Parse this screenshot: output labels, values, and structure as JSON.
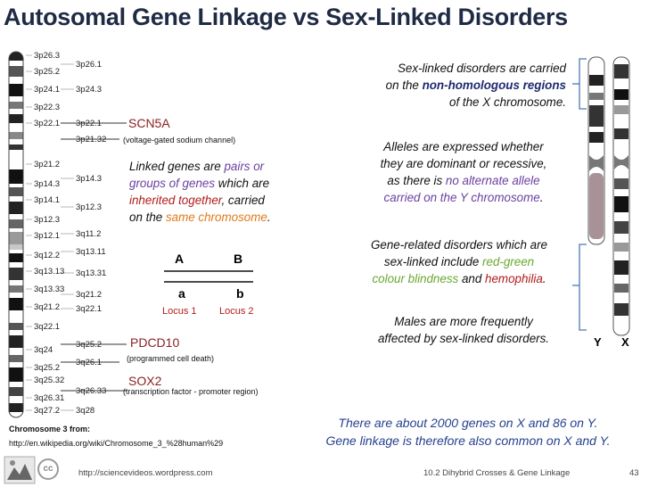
{
  "title": "Autosomal Gene Linkage  vs   Sex-Linked Disorders",
  "chromosome_bands_left": [
    "3p26.3",
    "3p25.2",
    "3p24.1",
    "3p22.3",
    "3p22.1",
    "3p21.2",
    "3p14.3",
    "3p14.1",
    "3p12.3",
    "3p12.1",
    "3q12.2",
    "3q13.13",
    "3q13.33",
    "3q21.2",
    "3q22.1",
    "3q24",
    "3q25.2",
    "3q25.32",
    "3q26.31",
    "3q27.2"
  ],
  "chromosome_bands_right": [
    "3p26.1",
    "3p24.3",
    "3p22.1",
    "3p21.32",
    "3p14.3",
    "3p12.3",
    "3q11.2",
    "3q13.11",
    "3q13.31",
    "3q21.2",
    "3q22.1",
    "3q25.2",
    "3q26.1",
    "3q26.33",
    "3q28"
  ],
  "genes": {
    "scn5a": {
      "name": "SCN5A",
      "desc": "(voltage-gated sodium channel)"
    },
    "pdcd10": {
      "name": "PDCD10",
      "desc": "(programmed cell death)"
    },
    "sox2": {
      "name": "SOX2",
      "desc": "(transcription factor - promoter region)"
    }
  },
  "linked": {
    "l1": "Linked genes are ",
    "l1b": "pairs or",
    "l2": "groups of genes",
    "l2b": " which are",
    "l3": "inherited together",
    "l3b": ", carried",
    "l4": "on the ",
    "l4b": "same chromosome",
    "l4c": "."
  },
  "diagram": {
    "allele_A": "A",
    "allele_B": "B",
    "allele_a": "a",
    "allele_b": "b",
    "locus1": "Locus 1",
    "locus2": "Locus 2"
  },
  "sex_linked": {
    "p1_l1": "Sex-linked disorders are carried",
    "p1_l2a": "on the ",
    "p1_l2b": "non-homologous regions",
    "p1_l3": "of the X chromosome.",
    "p2_l1": "Alleles are expressed whether",
    "p2_l2": "they are dominant or recessive,",
    "p2_l3a": "as there is ",
    "p2_l3b": "no alternate allele",
    "p2_l4a": "carried on the Y chromosome",
    "p2_l4b": ".",
    "p3_l1": "Gene-related disorders which are",
    "p3_l2a": "sex-linked include ",
    "p3_l2b": "red-green",
    "p3_l3a": "colour blindness",
    "p3_l3b": " and ",
    "p3_l3c": "hemophilia",
    "p3_l3d": ".",
    "p4_l1": "Males are more frequently",
    "p4_l2": "affected by sex-linked disorders."
  },
  "xy_labels": {
    "y": "Y",
    "x": "X"
  },
  "bottom_note": {
    "l1": "There are about 2000 genes on X and 86 on Y.",
    "l2": "Gene linkage is therefore also common on X and Y."
  },
  "source": {
    "l1": "Chromosome 3 from:",
    "l2": "http://en.wikipedia.org/wiki/Chromosome_3_%28human%29"
  },
  "footer": {
    "cc": "cc",
    "url": "http://sciencevideos.wordpress.com",
    "course": "10.2 Dihybrid Crosses & Gene Linkage",
    "page": "43"
  }
}
